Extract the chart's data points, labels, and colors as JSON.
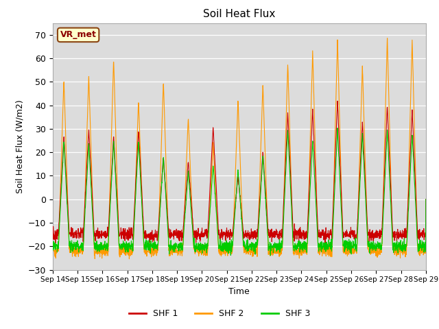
{
  "title": "Soil Heat Flux",
  "xlabel": "Time",
  "ylabel": "Soil Heat Flux (W/m2)",
  "ylim": [
    -30,
    75
  ],
  "colors": {
    "SHF 1": "#cc0000",
    "SHF 2": "#ff9900",
    "SHF 3": "#00cc00"
  },
  "legend_label": "VR_met",
  "bg_color": "#dcdcdc",
  "tick_labels": [
    "Sep 14",
    "Sep 15",
    "Sep 16",
    "Sep 17",
    "Sep 18",
    "Sep 19",
    "Sep 20",
    "Sep 21",
    "Sep 22",
    "Sep 23",
    "Sep 24",
    "Sep 25",
    "Sep 26",
    "Sep 27",
    "Sep 28",
    "Sep 29"
  ],
  "yticks": [
    -30,
    -20,
    -10,
    0,
    10,
    20,
    30,
    40,
    50,
    60,
    70
  ],
  "peaks_shf1": [
    27,
    30,
    27,
    30,
    18,
    16,
    31,
    10,
    20,
    37,
    38,
    42,
    33,
    40,
    38
  ],
  "peaks_shf2": [
    51,
    53,
    60,
    42,
    50,
    35,
    24,
    42,
    49,
    58,
    63,
    68,
    57,
    69,
    68
  ],
  "peaks_shf3": [
    25,
    24,
    25,
    25,
    18,
    12,
    15,
    13,
    19,
    30,
    25,
    30,
    28,
    30,
    28
  ],
  "night_shf1": -15,
  "night_shf2": -22,
  "night_shf3": -20
}
